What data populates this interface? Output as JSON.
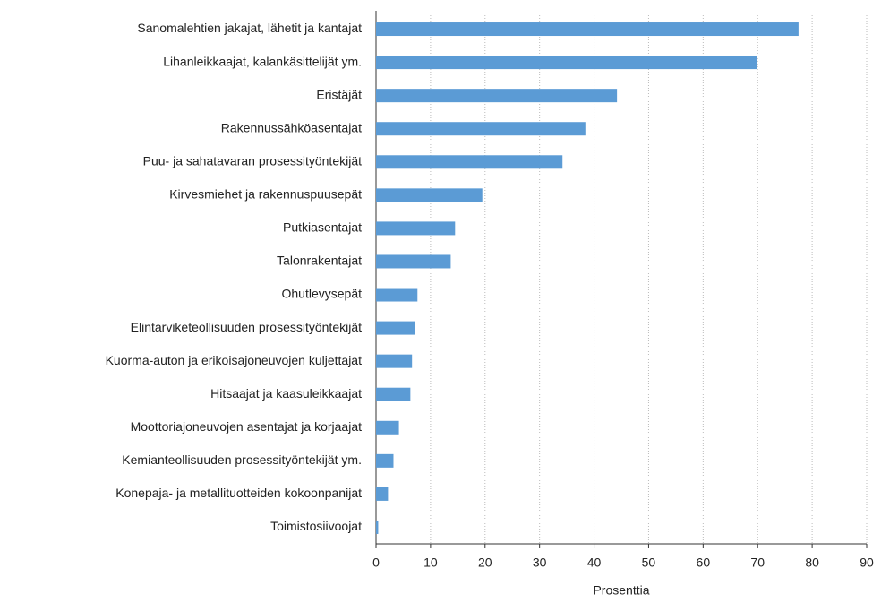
{
  "chart_data": {
    "type": "bar",
    "orientation": "horizontal",
    "x_label": "Prosenttia",
    "categories": [
      "Sanomalehtien jakajat, lähetit ja kantajat",
      "Lihanleikkaajat, kalankäsittelijät ym.",
      "Eristäjät",
      "Rakennussähköasentajat",
      "Puu- ja sahatavaran prosessityöntekijät",
      "Kirvesmiehet ja rakennuspuusepät",
      "Putkiasentajat",
      "Talonrakentajat",
      "Ohutlevysepät",
      "Elintarviketeollisuuden prosessityöntekijät",
      "Kuorma-auton ja erikoisajoneuvojen kuljettajat",
      "Hitsaajat ja kaasuleikkaajat",
      "Moottoriajoneuvojen asentajat ja korjaajat",
      "Kemianteollisuuden prosessityöntekijät ym.",
      "Konepaja- ja metallituotteiden kokoonpanijat",
      "Toimistosiivoojat"
    ],
    "values": [
      77.5,
      69.8,
      44.2,
      38.4,
      34.2,
      19.5,
      14.5,
      13.7,
      7.6,
      7.1,
      6.6,
      6.3,
      4.2,
      3.2,
      2.2,
      0.4
    ],
    "color": "#5b9bd5",
    "xlim": [
      0,
      90
    ],
    "xticks": [
      0,
      10,
      20,
      30,
      40,
      50,
      60,
      70,
      80,
      90
    ],
    "grid": true
  }
}
